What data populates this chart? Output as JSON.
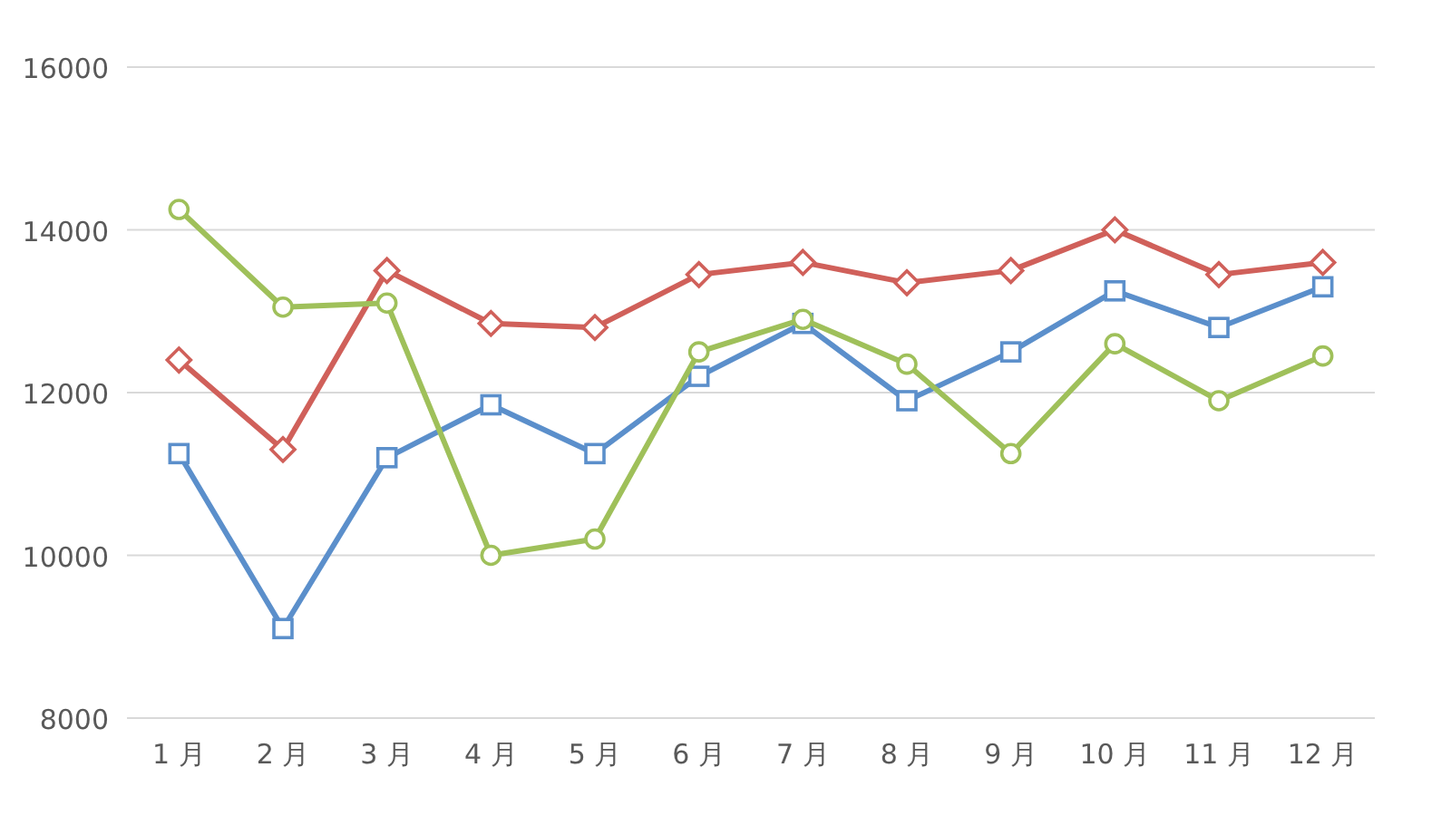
{
  "chart_data": {
    "type": "line",
    "categories": [
      "1 月",
      "2 月",
      "3 月",
      "4 月",
      "5 月",
      "6 月",
      "7 月",
      "8 月",
      "9 月",
      "10 月",
      "11 月",
      "12 月"
    ],
    "series": [
      {
        "color": "#5b8fcb",
        "marker": "square",
        "values": [
          11250,
          9100,
          11200,
          11850,
          11250,
          12200,
          12850,
          11900,
          12500,
          13250,
          12800,
          13300
        ]
      },
      {
        "color": "#d0605a",
        "marker": "diamond",
        "values": [
          12400,
          11300,
          13500,
          12850,
          12800,
          13450,
          13600,
          13350,
          13500,
          14000,
          13450,
          13600
        ]
      },
      {
        "color": "#9fc05a",
        "marker": "circle",
        "values": [
          14250,
          13050,
          13100,
          10000,
          10200,
          12500,
          12900,
          12350,
          11250,
          12600,
          11900,
          12450
        ]
      }
    ],
    "ylim": [
      8000,
      16000
    ],
    "yticks": [
      8000,
      10000,
      12000,
      14000,
      16000
    ],
    "grid": "y"
  }
}
